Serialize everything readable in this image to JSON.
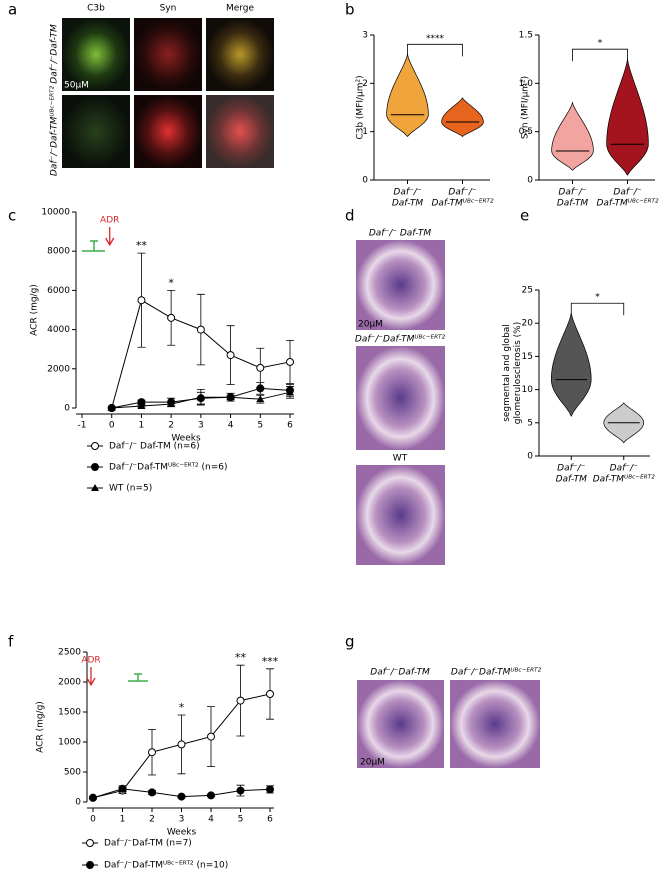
{
  "panel_letters": [
    "a",
    "b",
    "c",
    "d",
    "e",
    "f",
    "g"
  ],
  "panel_a": {
    "columns": [
      "C3b",
      "Syn",
      "Merge"
    ],
    "rows": [
      "Daf⁻/⁻Daf-TM",
      "Daf⁻/⁻Daf-TMᵁᴮᶜ⁻ᴱᴿᵀ²"
    ],
    "scale": "50µM"
  },
  "panel_d": {
    "labels": [
      "Daf⁻/⁻ Daf-TM",
      "Daf⁻/⁻Daf-TMᵁᴮᶜ⁻ᴱᴿᵀ²",
      "WT"
    ],
    "scale": "20µM"
  },
  "panel_g": {
    "labels": [
      "Daf⁻/⁻Daf-TM",
      "Daf⁻/⁻Daf-TMᵁᴮᶜ⁻ᴱᴿᵀ²"
    ],
    "scale": "20µM"
  },
  "chart_data": [
    {
      "type": "violin",
      "ylabel": [
        "C3b (MFI/µm²)"
      ],
      "categories": [
        [
          "Daf⁻/⁻",
          "Daf-TM"
        ],
        [
          "Daf⁻/⁻",
          "Daf-TMᵁᴮᶜ⁻ᴱᴿᵀ²"
        ]
      ],
      "values": [
        1.35,
        1.2
      ],
      "min": [
        0.9,
        0.9
      ],
      "max": [
        2.6,
        1.7
      ],
      "colors": [
        "#f0a43c",
        "#e6641e"
      ],
      "ylim": [
        0,
        3
      ],
      "yticks": [
        0,
        1,
        2,
        3
      ],
      "annotation": "****"
    },
    {
      "type": "violin",
      "ylabel": [
        "Syn (MFI/µm²)"
      ],
      "categories": [
        [
          "Daf⁻/⁻",
          "Daf-TM"
        ],
        [
          "Daf⁻/⁻",
          "Daf-TMᵁᴮᶜ⁻ᴱᴿᵀ²"
        ]
      ],
      "values": [
        0.3,
        0.37
      ],
      "min": [
        0.1,
        0.05
      ],
      "max": [
        0.8,
        1.25
      ],
      "colors": [
        "#f2a5a0",
        "#a3141e"
      ],
      "ylim": [
        0,
        1.5
      ],
      "yticks": [
        0,
        0.5,
        {
          "value": 1,
          "label": "1.0"
        },
        1.5
      ],
      "annotation": "*"
    },
    {
      "type": "line",
      "ylabel": [
        "ACR (mg/g)"
      ],
      "xlabel": "Weeks",
      "x": [
        0,
        1,
        2,
        3,
        4,
        5,
        6
      ],
      "xlim": [
        -1,
        6
      ],
      "xticks": [
        -1,
        0,
        1,
        2,
        3,
        4,
        5,
        6
      ],
      "ylim": [
        0,
        10000
      ],
      "yticks": [
        0,
        2000,
        4000,
        6000,
        8000,
        10000
      ],
      "arrow": "ADR",
      "series": [
        {
          "name": "Daf⁻/⁻ Daf-TM (n=6)",
          "marker": "open-circle",
          "color": "#000000",
          "values": [
            0,
            5500,
            4600,
            4000,
            2700,
            2050,
            2350
          ],
          "errors": [
            0,
            2400,
            1400,
            1800,
            1500,
            1000,
            1100
          ]
        },
        {
          "name": "Daf⁻/⁻Daf-TMᵁᴮᶜ⁻ᴱᴿᵀ² (n=6)",
          "marker": "circle",
          "color": "#000000",
          "values": [
            0,
            300,
            300,
            500,
            550,
            1000,
            900
          ],
          "errors": [
            0,
            100,
            200,
            300,
            200,
            300,
            300
          ]
        },
        {
          "name": "WT (n=5)",
          "marker": "triangle",
          "color": "#000000",
          "values": [
            0,
            100,
            200,
            550,
            550,
            450,
            800
          ],
          "errors": [
            0,
            50,
            100,
            400,
            100,
            200,
            300
          ]
        }
      ],
      "annotations": [
        {
          "text": "**",
          "x": 1
        },
        {
          "text": "*",
          "x": 2
        }
      ]
    },
    {
      "type": "violin",
      "ylabel": [
        "segmental and global",
        "glomerulosclerosis (%)"
      ],
      "categories": [
        [
          "Daf⁻/⁻",
          "Daf-TM"
        ],
        [
          "Daf⁻/⁻",
          "Daf-TMᵁᴮᶜ⁻ᴱᴿᵀ²"
        ]
      ],
      "values": [
        11.5,
        5
      ],
      "min": [
        6,
        2
      ],
      "max": [
        21.5,
        8
      ],
      "colors": [
        "#555555",
        "#cccccc"
      ],
      "ylim": [
        0,
        25
      ],
      "yticks": [
        0,
        5,
        10,
        15,
        20,
        25
      ],
      "annotation": "*"
    },
    {
      "type": "line",
      "ylabel": [
        "ACR (mg/g)"
      ],
      "xlabel": "Weeks",
      "x": [
        0,
        1,
        2,
        3,
        4,
        5,
        6
      ],
      "xlim": [
        0,
        6
      ],
      "xticks": [
        0,
        1,
        2,
        3,
        4,
        5,
        6
      ],
      "ylim": [
        0,
        2500
      ],
      "yticks": [
        0,
        500,
        1000,
        1500,
        2000,
        2500
      ],
      "arrow": "ADR",
      "series": [
        {
          "name": "Daf⁻/⁻Daf-TM (n=7)",
          "marker": "open-circle",
          "color": "#000000",
          "values": [
            70,
            190,
            830,
            960,
            1090,
            1690,
            1800
          ],
          "errors": [
            0,
            50,
            380,
            490,
            500,
            590,
            420
          ]
        },
        {
          "name": "Daf⁻/⁻Daf-TMᵁᴮᶜ⁻ᴱᴿᵀ² (n=10)",
          "marker": "circle",
          "color": "#000000",
          "values": [
            70,
            220,
            160,
            90,
            110,
            190,
            210
          ],
          "errors": [
            0,
            50,
            30,
            20,
            20,
            90,
            60
          ]
        }
      ],
      "annotations": [
        {
          "text": "*",
          "x": 3
        },
        {
          "text": "**",
          "x": 5
        },
        {
          "text": "***",
          "x": 6
        }
      ]
    }
  ]
}
